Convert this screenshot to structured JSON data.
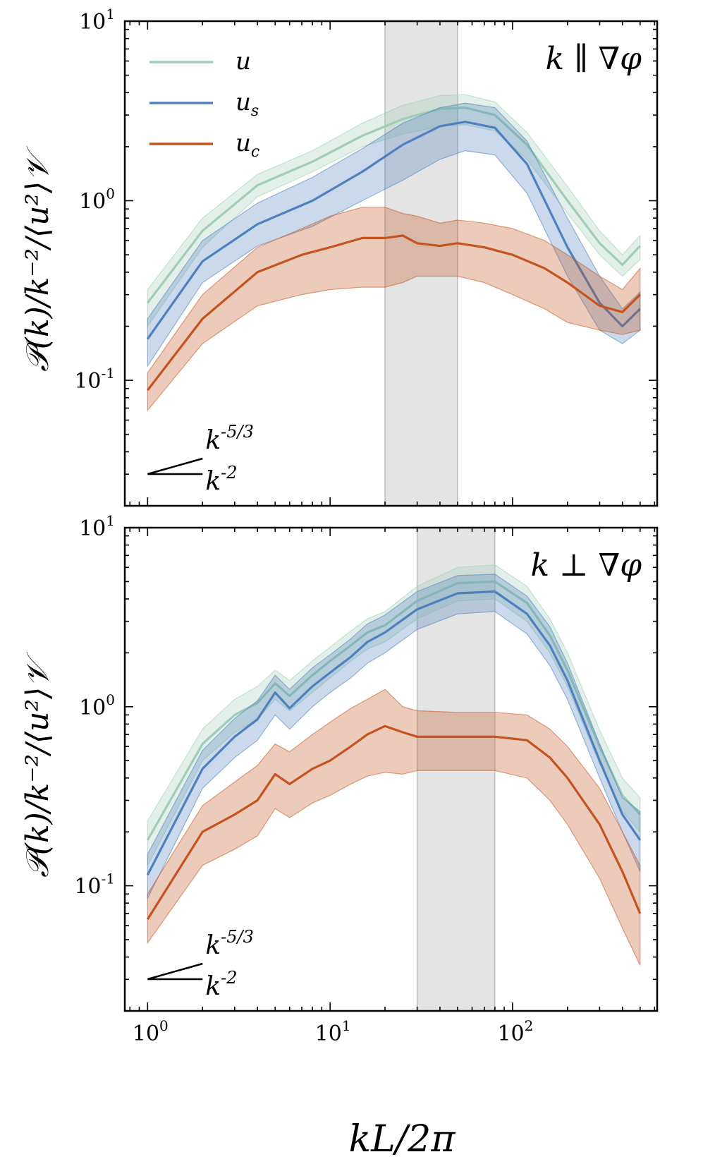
{
  "chart_data": [
    {
      "type": "line",
      "panel": "top",
      "annotation": "k ∥ ∇φ",
      "xlabel": "kL/2π",
      "ylabel": "𝒫(k)/k⁻²/⟨u²⟩𝒱",
      "xscale": "log",
      "yscale": "log",
      "xlim": [
        0.75,
        620
      ],
      "ylim": [
        0.02,
        10
      ],
      "xticks": [
        "10^0",
        "10^1",
        "10^2"
      ],
      "yticks": [
        "10^-1",
        "10^0",
        "10^1"
      ],
      "shaded_band": [
        20,
        50
      ],
      "slope_labels": [
        "k^{-5/3}",
        "k^{-2}"
      ],
      "series": [
        {
          "name": "u",
          "color": "#9fcdb7",
          "x": [
            1,
            2,
            4,
            8,
            15,
            25,
            40,
            55,
            80,
            120,
            200,
            300,
            400,
            500
          ],
          "y": [
            0.27,
            0.68,
            1.22,
            1.65,
            2.3,
            2.85,
            3.25,
            3.3,
            3.0,
            2.05,
            1.0,
            0.58,
            0.44,
            0.56
          ],
          "lower": [
            0.2,
            0.55,
            1.05,
            1.45,
            2.0,
            2.35,
            2.6,
            2.65,
            2.45,
            1.7,
            0.85,
            0.5,
            0.38,
            0.47
          ],
          "upper": [
            0.32,
            0.8,
            1.4,
            1.9,
            2.7,
            3.4,
            3.85,
            3.9,
            3.55,
            2.4,
            1.2,
            0.68,
            0.5,
            0.64
          ]
        },
        {
          "name": "u_s",
          "color": "#4f80bd",
          "x": [
            1,
            2,
            4,
            8,
            15,
            25,
            40,
            55,
            80,
            120,
            200,
            300,
            400,
            500
          ],
          "y": [
            0.17,
            0.46,
            0.74,
            1.0,
            1.45,
            2.05,
            2.6,
            2.75,
            2.55,
            1.6,
            0.55,
            0.27,
            0.2,
            0.25
          ],
          "lower": [
            0.12,
            0.35,
            0.56,
            0.72,
            1.0,
            1.3,
            1.7,
            1.9,
            1.8,
            1.1,
            0.38,
            0.19,
            0.16,
            0.19
          ],
          "upper": [
            0.22,
            0.6,
            0.97,
            1.35,
            1.95,
            2.7,
            3.3,
            3.5,
            3.3,
            2.15,
            0.8,
            0.38,
            0.25,
            0.31
          ]
        },
        {
          "name": "u_c",
          "color": "#c4531f",
          "x": [
            1,
            2,
            4,
            7,
            10,
            15,
            20,
            25,
            30,
            40,
            50,
            70,
            100,
            150,
            200,
            300,
            400,
            500
          ],
          "y": [
            0.088,
            0.22,
            0.4,
            0.5,
            0.55,
            0.62,
            0.62,
            0.64,
            0.58,
            0.56,
            0.58,
            0.55,
            0.5,
            0.42,
            0.35,
            0.26,
            0.24,
            0.3
          ],
          "lower": [
            0.068,
            0.16,
            0.26,
            0.3,
            0.32,
            0.33,
            0.33,
            0.35,
            0.38,
            0.38,
            0.38,
            0.35,
            0.3,
            0.25,
            0.21,
            0.19,
            0.18,
            0.19
          ],
          "upper": [
            0.11,
            0.3,
            0.55,
            0.7,
            0.82,
            0.92,
            0.92,
            0.85,
            0.82,
            0.75,
            0.78,
            0.75,
            0.7,
            0.6,
            0.5,
            0.38,
            0.32,
            0.42
          ]
        }
      ]
    },
    {
      "type": "line",
      "panel": "bottom",
      "annotation": "k ⊥ ∇φ",
      "xlabel": "kL/2π",
      "ylabel": "𝒫(k)/k⁻²/⟨u²⟩𝒱",
      "xscale": "log",
      "yscale": "log",
      "xlim": [
        0.75,
        620
      ],
      "ylim": [
        0.02,
        10
      ],
      "xticks": [
        "10^0",
        "10^1",
        "10^2"
      ],
      "yticks": [
        "10^-1",
        "10^0",
        "10^1"
      ],
      "shaded_band": [
        30,
        80
      ],
      "slope_labels": [
        "k^{-5/3}",
        "k^{-2}"
      ],
      "series": [
        {
          "name": "u",
          "color": "#9fcdb7",
          "x": [
            1,
            2,
            3,
            4,
            5,
            6,
            8,
            10,
            13,
            16,
            20,
            30,
            50,
            80,
            120,
            160,
            200,
            300,
            400,
            500
          ],
          "y": [
            0.18,
            0.62,
            0.9,
            1.05,
            1.35,
            1.15,
            1.5,
            1.8,
            2.2,
            2.6,
            2.85,
            3.9,
            4.9,
            5.0,
            3.8,
            2.5,
            1.6,
            0.6,
            0.32,
            0.25
          ],
          "lower": [
            0.13,
            0.5,
            0.72,
            0.85,
            1.1,
            0.95,
            1.2,
            1.45,
            1.8,
            2.1,
            2.3,
            3.1,
            3.9,
            4.0,
            3.0,
            2.0,
            1.3,
            0.48,
            0.26,
            0.2
          ],
          "upper": [
            0.23,
            0.75,
            1.1,
            1.3,
            1.6,
            1.4,
            1.8,
            2.15,
            2.65,
            3.1,
            3.4,
            4.7,
            6.0,
            6.2,
            4.7,
            3.1,
            2.0,
            0.74,
            0.4,
            0.31
          ]
        },
        {
          "name": "u_s",
          "color": "#4f80bd",
          "x": [
            1,
            2,
            3,
            4,
            5,
            6,
            8,
            10,
            13,
            16,
            20,
            30,
            50,
            80,
            120,
            160,
            200,
            300,
            400,
            500
          ],
          "y": [
            0.115,
            0.45,
            0.68,
            0.85,
            1.2,
            0.98,
            1.3,
            1.55,
            1.9,
            2.3,
            2.6,
            3.5,
            4.3,
            4.4,
            3.3,
            2.2,
            1.4,
            0.5,
            0.25,
            0.18
          ],
          "lower": [
            0.085,
            0.35,
            0.52,
            0.65,
            0.9,
            0.75,
            1.0,
            1.2,
            1.45,
            1.75,
            2.0,
            2.7,
            3.3,
            3.4,
            2.55,
            1.7,
            1.1,
            0.4,
            0.2,
            0.12
          ],
          "upper": [
            0.15,
            0.57,
            0.86,
            1.08,
            1.5,
            1.25,
            1.65,
            1.95,
            2.4,
            2.9,
            3.25,
            4.4,
            5.4,
            5.5,
            4.15,
            2.8,
            1.75,
            0.62,
            0.31,
            0.26
          ]
        },
        {
          "name": "u_c",
          "color": "#c4531f",
          "x": [
            1,
            2,
            3,
            4,
            5,
            6,
            8,
            10,
            13,
            16,
            20,
            25,
            30,
            50,
            80,
            120,
            160,
            200,
            300,
            400,
            500
          ],
          "y": [
            0.065,
            0.2,
            0.25,
            0.3,
            0.42,
            0.37,
            0.45,
            0.5,
            0.6,
            0.7,
            0.78,
            0.72,
            0.68,
            0.68,
            0.68,
            0.65,
            0.52,
            0.4,
            0.22,
            0.12,
            0.07
          ],
          "lower": [
            0.048,
            0.13,
            0.16,
            0.19,
            0.27,
            0.24,
            0.29,
            0.32,
            0.37,
            0.41,
            0.43,
            0.42,
            0.44,
            0.44,
            0.44,
            0.4,
            0.3,
            0.22,
            0.11,
            0.058,
            0.036
          ],
          "upper": [
            0.09,
            0.28,
            0.38,
            0.47,
            0.62,
            0.56,
            0.7,
            0.82,
            0.98,
            1.1,
            1.25,
            1.0,
            0.95,
            0.93,
            0.93,
            0.9,
            0.75,
            0.6,
            0.35,
            0.2,
            0.13
          ]
        }
      ]
    }
  ],
  "legend": [
    {
      "symbol": "u",
      "sub": "",
      "color": "#9fcdb7"
    },
    {
      "symbol": "u",
      "sub": "s",
      "color": "#4f80bd"
    },
    {
      "symbol": "u",
      "sub": "c",
      "color": "#c4531f"
    }
  ]
}
